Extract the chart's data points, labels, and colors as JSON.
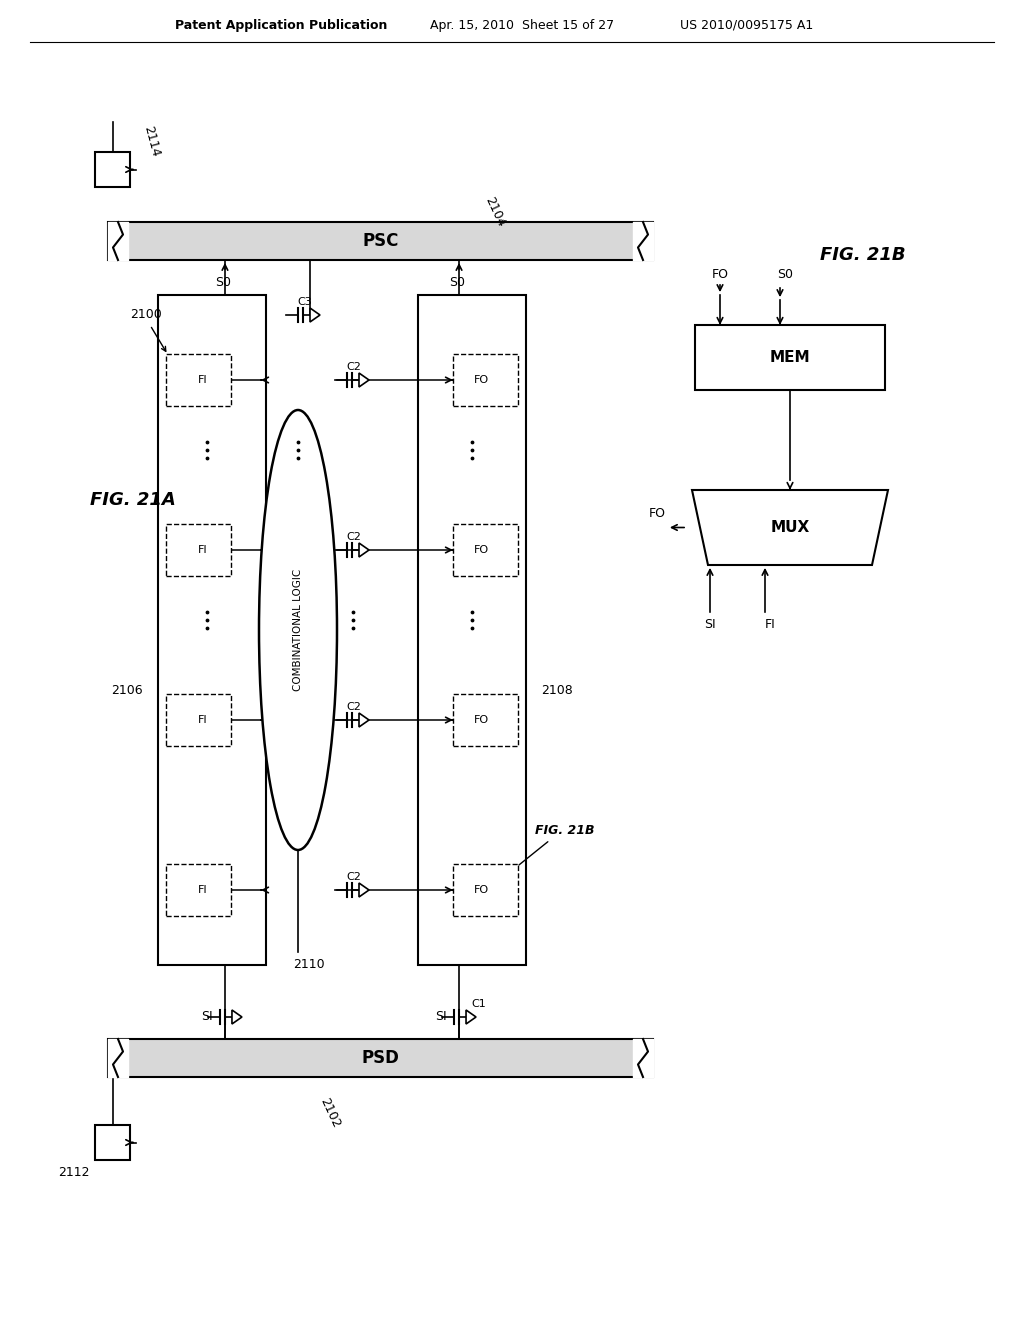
{
  "bg_color": "#ffffff",
  "line_color": "#000000",
  "header_left": "Patent Application Publication",
  "header_mid": "Apr. 15, 2010  Sheet 15 of 27",
  "header_right": "US 2010/0095175 A1",
  "fig_label_A": "FIG. 21A",
  "fig_label_B": "FIG. 21B",
  "label_2100": "2100",
  "label_2102": "2102",
  "label_2104": "2104",
  "label_2106": "2106",
  "label_2108": "2108",
  "label_2110": "2110",
  "label_2112": "2112",
  "label_2114": "2114",
  "label_PSC": "PSC",
  "label_PSD": "PSD",
  "label_COMB": "COMBINATIONAL LOGIC",
  "label_MEM": "MEM",
  "label_MUX": "MUX",
  "label_C1": "C1",
  "label_C2": "C2",
  "label_C3": "C3",
  "label_FI": "FI",
  "label_FO": "FO",
  "label_S0": "S0",
  "label_SI": "SI",
  "label_FIG21B_ref": "FIG. 21B"
}
